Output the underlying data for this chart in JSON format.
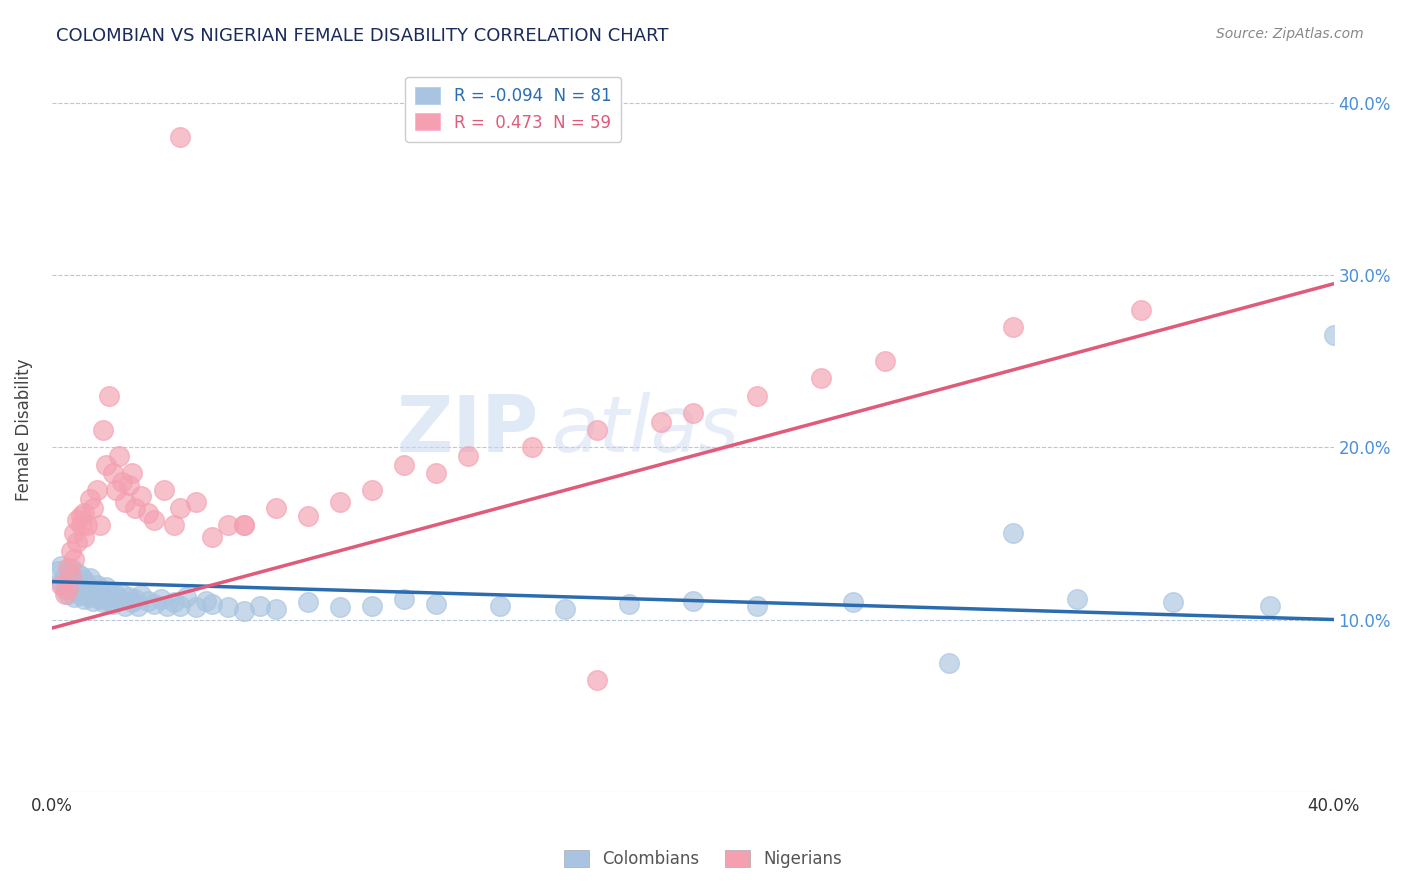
{
  "title": "COLOMBIAN VS NIGERIAN FEMALE DISABILITY CORRELATION CHART",
  "source_text": "Source: ZipAtlas.com",
  "ylabel": "Female Disability",
  "xlim": [
    0.0,
    0.4
  ],
  "ylim": [
    0.0,
    0.42
  ],
  "legend_r_colombians": "-0.094",
  "legend_n_colombians": "81",
  "legend_r_nigerians": "0.473",
  "legend_n_nigerians": "59",
  "colombian_color": "#a8c4e0",
  "nigerian_color": "#f4a0b0",
  "colombian_line_color": "#2b6cb0",
  "nigerian_line_color": "#e05a7a",
  "watermark_text": "ZIPatlas",
  "background_color": "#ffffff",
  "grid_color": "#b8c8d8",
  "colombians_x": [
    0.002,
    0.003,
    0.003,
    0.004,
    0.004,
    0.005,
    0.005,
    0.005,
    0.006,
    0.006,
    0.006,
    0.007,
    0.007,
    0.007,
    0.008,
    0.008,
    0.008,
    0.009,
    0.009,
    0.009,
    0.01,
    0.01,
    0.01,
    0.011,
    0.011,
    0.012,
    0.012,
    0.012,
    0.013,
    0.013,
    0.014,
    0.014,
    0.015,
    0.015,
    0.016,
    0.016,
    0.017,
    0.017,
    0.018,
    0.018,
    0.019,
    0.02,
    0.021,
    0.022,
    0.023,
    0.024,
    0.025,
    0.026,
    0.027,
    0.028,
    0.03,
    0.032,
    0.034,
    0.036,
    0.038,
    0.04,
    0.042,
    0.045,
    0.048,
    0.05,
    0.055,
    0.06,
    0.065,
    0.07,
    0.08,
    0.09,
    0.1,
    0.11,
    0.12,
    0.14,
    0.16,
    0.18,
    0.2,
    0.22,
    0.25,
    0.28,
    0.3,
    0.32,
    0.35,
    0.38,
    0.4
  ],
  "colombians_y": [
    0.128,
    0.122,
    0.131,
    0.118,
    0.125,
    0.12,
    0.115,
    0.123,
    0.119,
    0.124,
    0.13,
    0.113,
    0.118,
    0.122,
    0.116,
    0.121,
    0.127,
    0.114,
    0.119,
    0.125,
    0.112,
    0.117,
    0.123,
    0.115,
    0.12,
    0.113,
    0.118,
    0.124,
    0.111,
    0.116,
    0.114,
    0.12,
    0.112,
    0.117,
    0.11,
    0.115,
    0.113,
    0.119,
    0.111,
    0.116,
    0.109,
    0.114,
    0.112,
    0.115,
    0.108,
    0.113,
    0.11,
    0.112,
    0.108,
    0.114,
    0.111,
    0.109,
    0.112,
    0.108,
    0.11,
    0.108,
    0.113,
    0.107,
    0.111,
    0.109,
    0.107,
    0.105,
    0.108,
    0.106,
    0.11,
    0.107,
    0.108,
    0.112,
    0.109,
    0.108,
    0.106,
    0.109,
    0.111,
    0.108,
    0.11,
    0.075,
    0.15,
    0.112,
    0.11,
    0.108,
    0.265
  ],
  "nigerians_x": [
    0.003,
    0.004,
    0.005,
    0.005,
    0.006,
    0.006,
    0.007,
    0.007,
    0.008,
    0.008,
    0.009,
    0.009,
    0.01,
    0.01,
    0.011,
    0.012,
    0.013,
    0.014,
    0.015,
    0.016,
    0.017,
    0.018,
    0.019,
    0.02,
    0.021,
    0.022,
    0.023,
    0.024,
    0.025,
    0.026,
    0.028,
    0.03,
    0.032,
    0.035,
    0.038,
    0.04,
    0.045,
    0.05,
    0.055,
    0.06,
    0.07,
    0.08,
    0.09,
    0.1,
    0.11,
    0.12,
    0.13,
    0.15,
    0.17,
    0.19,
    0.2,
    0.22,
    0.24,
    0.26,
    0.3,
    0.34,
    0.17,
    0.06,
    0.04
  ],
  "nigerians_y": [
    0.12,
    0.115,
    0.13,
    0.118,
    0.125,
    0.14,
    0.135,
    0.15,
    0.145,
    0.158,
    0.16,
    0.155,
    0.148,
    0.162,
    0.155,
    0.17,
    0.165,
    0.175,
    0.155,
    0.21,
    0.19,
    0.23,
    0.185,
    0.175,
    0.195,
    0.18,
    0.168,
    0.178,
    0.185,
    0.165,
    0.172,
    0.162,
    0.158,
    0.175,
    0.155,
    0.165,
    0.168,
    0.148,
    0.155,
    0.155,
    0.165,
    0.16,
    0.168,
    0.175,
    0.19,
    0.185,
    0.195,
    0.2,
    0.21,
    0.215,
    0.22,
    0.23,
    0.24,
    0.25,
    0.27,
    0.28,
    0.065,
    0.155,
    0.38
  ]
}
